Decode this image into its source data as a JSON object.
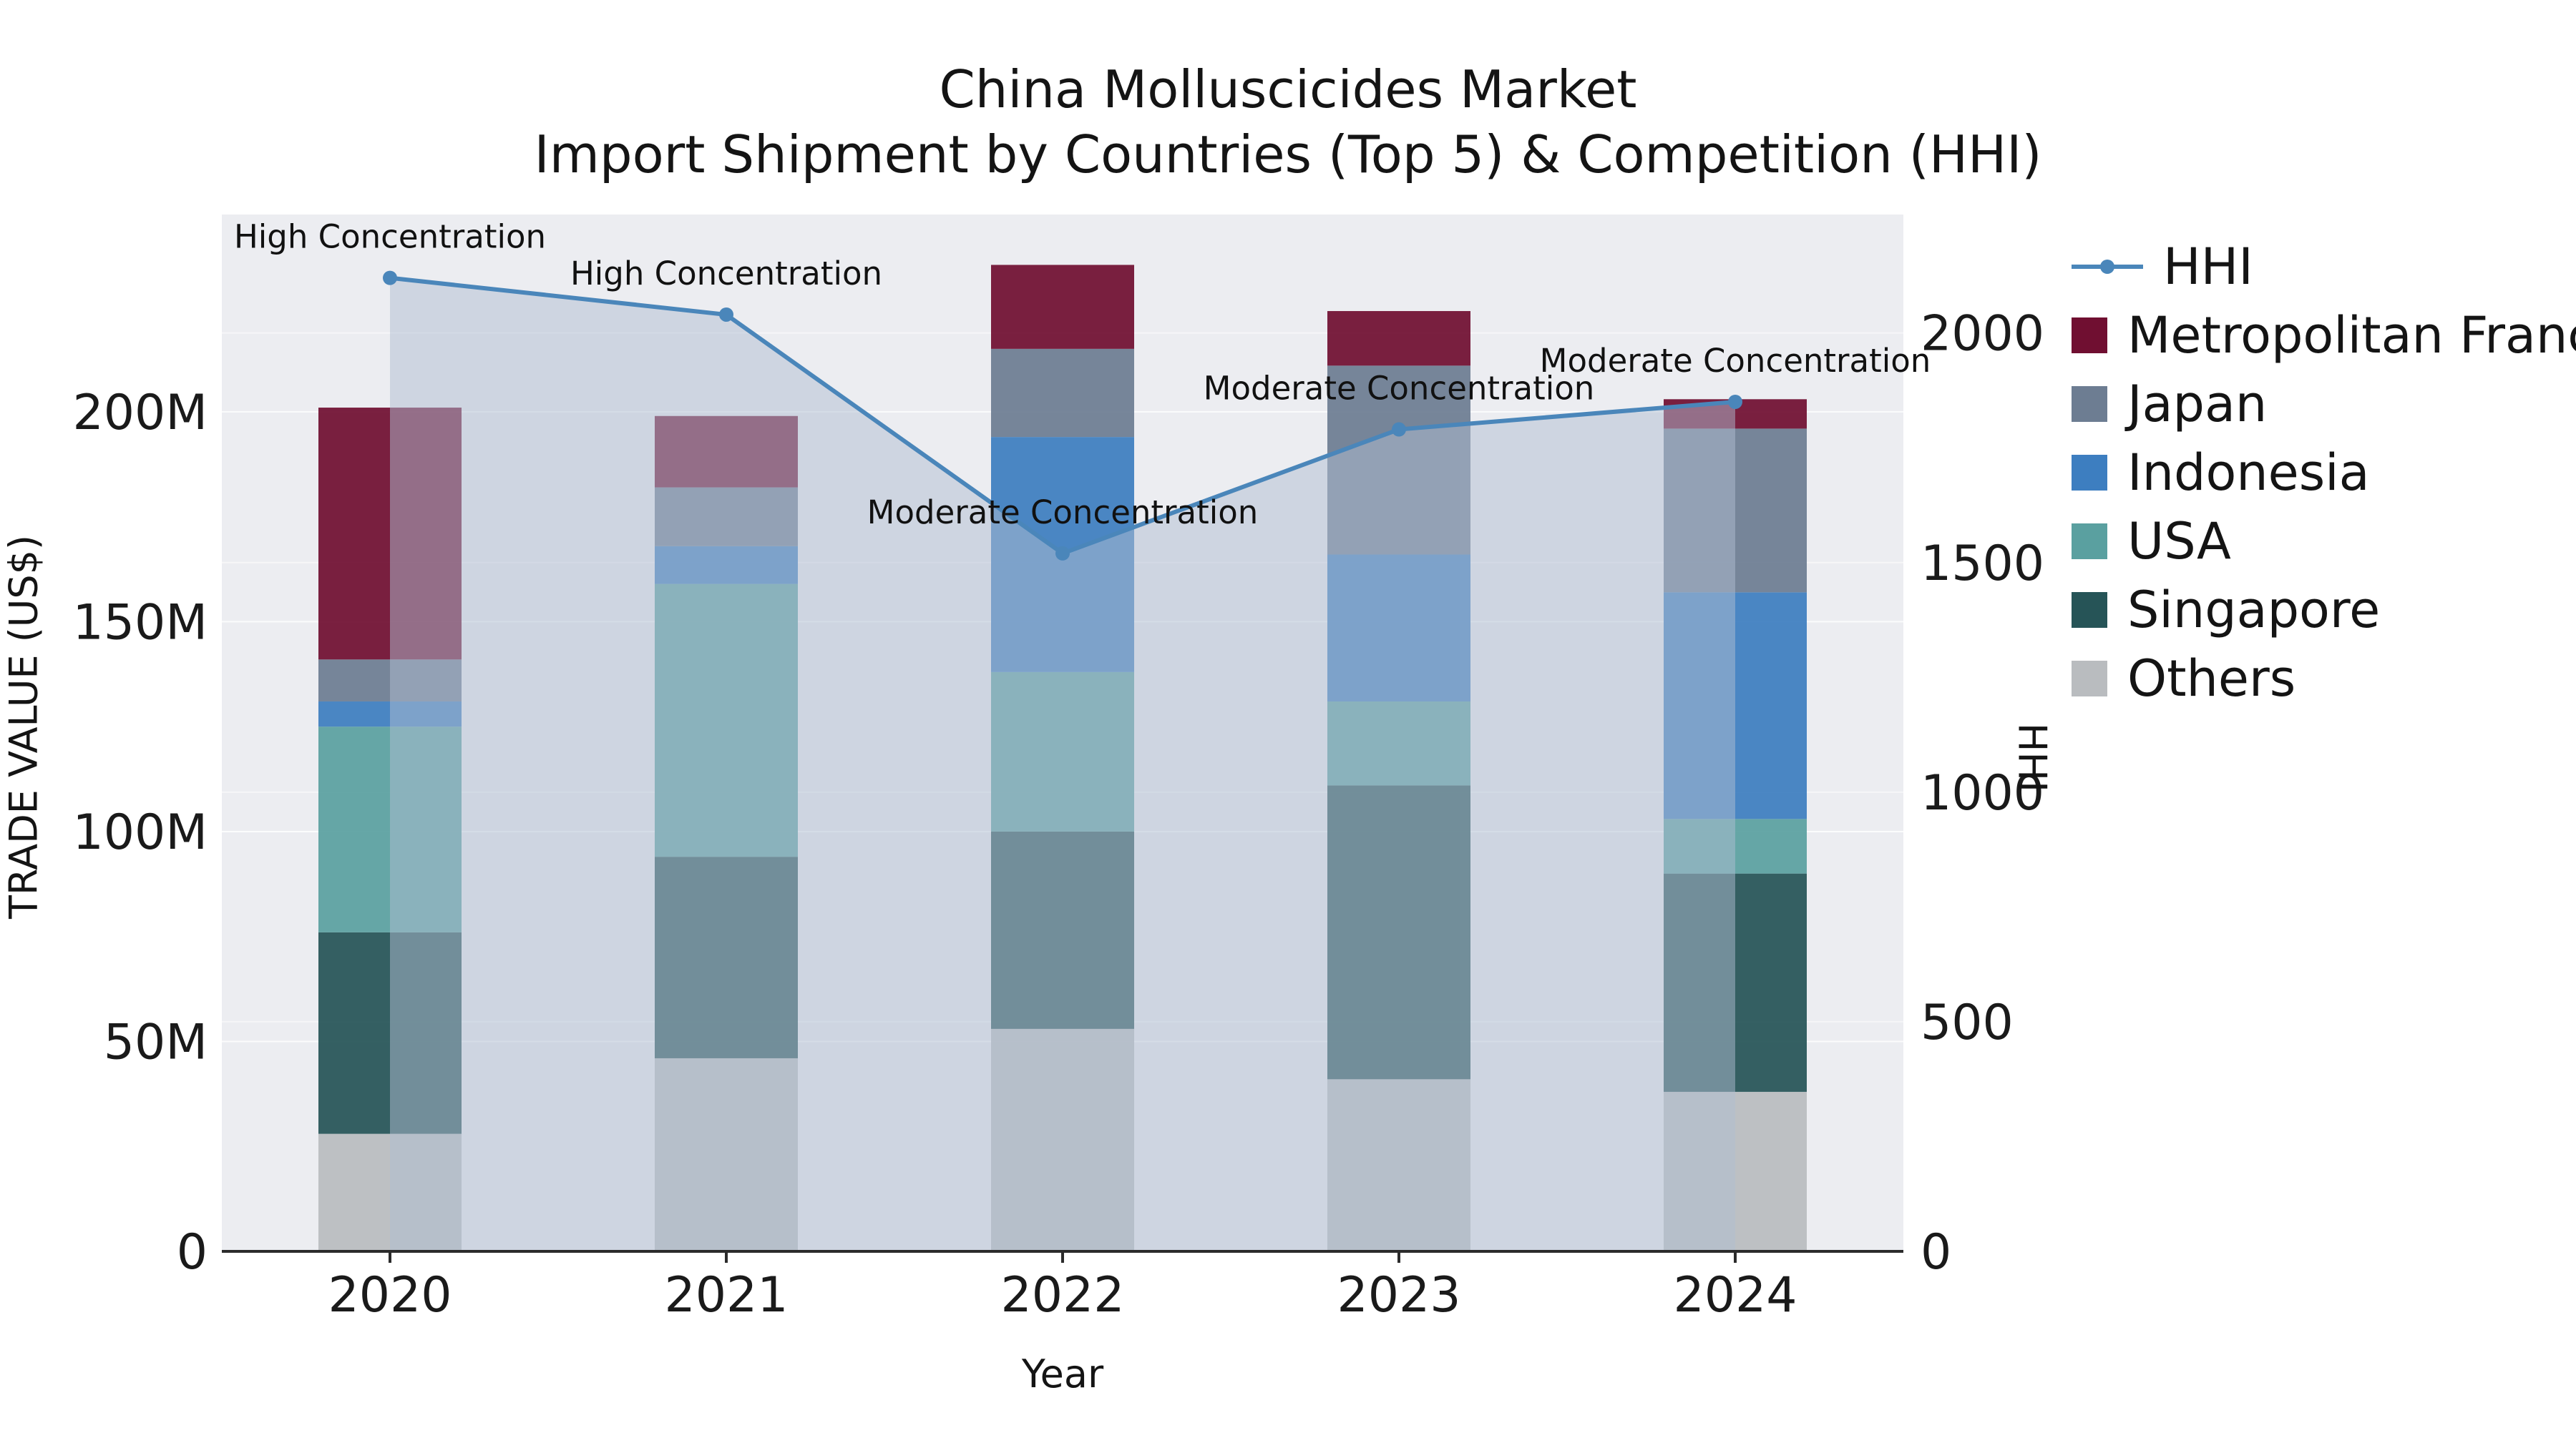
{
  "title": {
    "line1": "China Molluscicides Market",
    "line2": "Import Shipment by Countries (Top 5) & Competition (HHI)"
  },
  "chart_data": {
    "type": "bar",
    "subtype": "stacked-bar-with-line",
    "x": [
      "2020",
      "2021",
      "2022",
      "2023",
      "2024"
    ],
    "xlabel": "Year",
    "ylabel_left": "TRADE VALUE (US$)",
    "ylabel_right": "HHI",
    "y_left_ticks": [
      "0",
      "50M",
      "100M",
      "150M",
      "200M"
    ],
    "y_left_tick_values": [
      0,
      50,
      100,
      150,
      200
    ],
    "y_left_max": 247,
    "y_right_ticks": [
      "0",
      "500",
      "1000",
      "1500",
      "2000"
    ],
    "y_right_tick_values": [
      0,
      500,
      1000,
      1500,
      2000
    ],
    "y_right_max": 2258,
    "values_unit": "millions USD",
    "stack_order": [
      "Others",
      "Singapore",
      "USA",
      "Indonesia",
      "Japan",
      "Metropolitan France"
    ],
    "series": [
      {
        "name": "Metropolitan France",
        "color": "#700f31",
        "values": [
          60,
          17,
          20,
          13,
          7
        ]
      },
      {
        "name": "Japan",
        "color": "#6d7d92",
        "values": [
          10,
          14,
          21,
          45,
          39
        ]
      },
      {
        "name": "Indonesia",
        "color": "#3d7ec0",
        "values": [
          6,
          9,
          56,
          35,
          54
        ]
      },
      {
        "name": "USA",
        "color": "#5aa0a0",
        "values": [
          49,
          65,
          38,
          20,
          13
        ]
      },
      {
        "name": "Singapore",
        "color": "#265457",
        "values": [
          48,
          48,
          47,
          70,
          52
        ]
      },
      {
        "name": "Others",
        "color": "#b9bcbf",
        "values": [
          28,
          46,
          53,
          41,
          38
        ]
      }
    ],
    "line_series": {
      "name": "HHI",
      "color": "#4a86ba",
      "area_color": "#afbdd2",
      "values": [
        2120,
        2040,
        1520,
        1790,
        1850
      ],
      "annotations": [
        "High Concentration",
        "High Concentration",
        "Moderate Concentration",
        "Moderate Concentration",
        "Moderate Concentration"
      ]
    },
    "grid": true,
    "legend_position": "right"
  },
  "legend": {
    "items": [
      {
        "label": "HHI",
        "type": "line",
        "color": "#4a86ba"
      },
      {
        "label": "Metropolitan France",
        "type": "square",
        "color": "#700f31"
      },
      {
        "label": "Japan",
        "type": "square",
        "color": "#6d7d92"
      },
      {
        "label": "Indonesia",
        "type": "square",
        "color": "#3d7ec0"
      },
      {
        "label": "USA",
        "type": "square",
        "color": "#5aa0a0"
      },
      {
        "label": "Singapore",
        "type": "square",
        "color": "#265457"
      },
      {
        "label": "Others",
        "type": "square",
        "color": "#b9bcbf"
      }
    ]
  }
}
